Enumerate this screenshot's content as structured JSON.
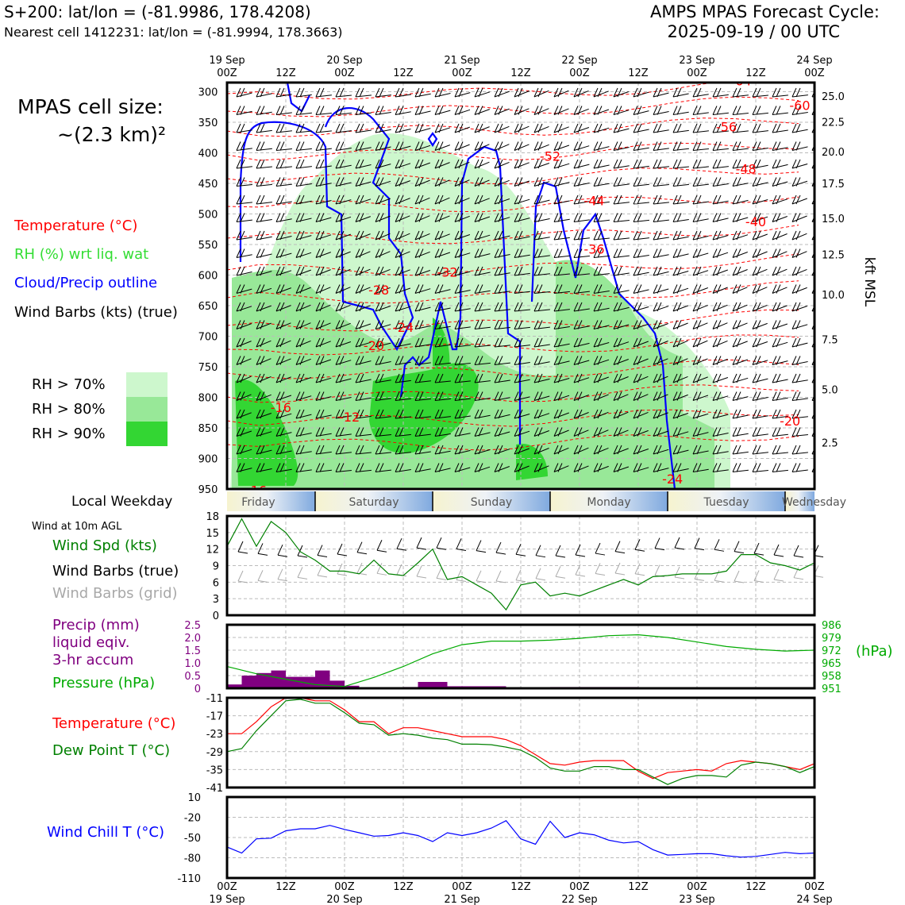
{
  "header": {
    "left_line1": "S+200: lat/lon = (-81.9986, 178.4208)",
    "left_line2": "Nearest cell 1412231: lat/lon = (-81.9994, 178.3663)",
    "right_line1": "AMPS MPAS Forecast Cycle:",
    "right_line2": "2025-09-19 / 00 UTC"
  },
  "cell_size": {
    "line1": "MPAS cell size:",
    "line2": "~(2.3 km)²"
  },
  "legend": {
    "temperature": "Temperature (°C)",
    "rh": "RH (%) wrt liq. wat",
    "cloud": "Cloud/Precip outline",
    "wind": "Wind Barbs (kts) (true)",
    "rh70": "RH > 70%",
    "rh80": "RH > 80%",
    "rh90": "RH > 90%",
    "colors": {
      "rh70": "#cdf7cd",
      "rh80": "#98e898",
      "rh90": "#33d633",
      "temp": "#ff0000",
      "cloud": "#0000ff"
    }
  },
  "top_axis": {
    "date_labels": [
      "19 Sep",
      "",
      "20 Sep",
      "",
      "21 Sep",
      "",
      "22 Sep",
      "",
      "23 Sep",
      "",
      "24 Sep"
    ],
    "hour_labels": [
      "00Z",
      "12Z",
      "00Z",
      "12Z",
      "00Z",
      "12Z",
      "00Z",
      "12Z",
      "00Z",
      "12Z",
      "00Z"
    ]
  },
  "weekday": {
    "title": "Local Weekday",
    "days": [
      "Friday",
      "Saturday",
      "Sunday",
      "Monday",
      "Tuesday",
      "Wednesday"
    ]
  },
  "panel_labels": {
    "wind10m": "Wind at 10m AGL",
    "wind_spd": "Wind Spd (kts)",
    "wind_barbs_true": "Wind Barbs (true)",
    "wind_barbs_grid": "Wind Barbs (grid)",
    "precip1": "Precip (mm)",
    "precip2": "liquid eqiv.",
    "precip3": "3-hr accum",
    "pressure": "Pressure (hPa)",
    "pressure_unit": "(hPa)",
    "temperature": "Temperature (°C)",
    "dewpoint": "Dew Point T (°C)",
    "windchill": "Wind Chill T (°C)"
  },
  "chart_data": [
    {
      "type": "time-height cross-section",
      "title": "Temperature, RH, cloud outline and wind barbs",
      "x_hours": [
        0,
        120
      ],
      "y_pressure_ticks": [
        300,
        350,
        400,
        450,
        500,
        550,
        600,
        650,
        700,
        750,
        800,
        850,
        900,
        950
      ],
      "y_right_label": "kft MSL",
      "y_right_ticks": [
        "25.0",
        "22.5",
        "20.0",
        "17.5",
        "15.0",
        "12.5",
        "10.0",
        "7.5",
        "5.0",
        "2.5"
      ],
      "y_right_tick_pressures": [
        307,
        349,
        398,
        450,
        507,
        566,
        632,
        705,
        787,
        874
      ],
      "temperature_contour_labels": [
        {
          "label": "-64",
          "hour": 105,
          "p": 282
        },
        {
          "label": "-60",
          "hour": 117,
          "p": 322
        },
        {
          "label": "-56",
          "hour": 102,
          "p": 357
        },
        {
          "label": "-52",
          "hour": 66,
          "p": 405
        },
        {
          "label": "-48",
          "hour": 106,
          "p": 426
        },
        {
          "label": "-44",
          "hour": 75,
          "p": 478
        },
        {
          "label": "-40",
          "hour": 108,
          "p": 512
        },
        {
          "label": "-36",
          "hour": 75,
          "p": 557
        },
        {
          "label": "-32",
          "hour": 45,
          "p": 595
        },
        {
          "label": "-28",
          "hour": 31,
          "p": 624
        },
        {
          "label": "-24",
          "hour": 36,
          "p": 685
        },
        {
          "label": "-20",
          "hour": 30,
          "p": 715
        },
        {
          "label": "-16",
          "hour": 11,
          "p": 816
        },
        {
          "label": "-12",
          "hour": 25,
          "p": 832
        },
        {
          "label": "-20",
          "hour": 115,
          "p": 838
        },
        {
          "label": "-16",
          "hour": 6,
          "p": 952
        },
        {
          "label": "-24",
          "hour": 91,
          "p": 933
        }
      ]
    },
    {
      "type": "line",
      "title": "Wind at 10m AGL",
      "ylabel": "Wind Spd (kts)",
      "ylim": [
        0,
        18
      ],
      "yticks": [
        0,
        3,
        6,
        9,
        12,
        15,
        18
      ],
      "x_hours": [
        0,
        3,
        6,
        9,
        12,
        15,
        18,
        21,
        24,
        27,
        30,
        33,
        36,
        39,
        42,
        45,
        48,
        51,
        54,
        57,
        60,
        63,
        66,
        69,
        72,
        75,
        78,
        81,
        84,
        87,
        90,
        93,
        96,
        99,
        102,
        105,
        108,
        111,
        114,
        117,
        120
      ],
      "series": [
        {
          "name": "Wind Spd (kts)",
          "values": [
            12.5,
            17.5,
            12.5,
            17,
            15,
            11.5,
            10,
            8,
            8,
            7.5,
            10,
            7.5,
            7.2,
            9.5,
            12,
            6.5,
            7,
            5.5,
            4,
            1,
            5.5,
            6,
            3.5,
            4,
            3.5,
            4.5,
            5.5,
            6.5,
            5.5,
            7,
            7.2,
            7.5,
            7.5,
            7.5,
            8,
            11,
            11,
            9.5,
            9,
            8.2,
            9.5
          ]
        }
      ]
    },
    {
      "type": "bar+line",
      "title": "Precipitation and pressure",
      "left_ylabel": "Precip (mm)",
      "left_ylim": [
        0,
        2.5
      ],
      "left_yticks": [
        "0",
        "0.5",
        "1.0",
        "1.5",
        "2.0",
        "2.5"
      ],
      "right_ylabel": "Pressure (hPa)",
      "right_ylim": [
        951,
        986
      ],
      "right_yticks": [
        "951",
        "958",
        "965",
        "972",
        "979",
        "986"
      ],
      "precip_bars": [
        {
          "hour": 3,
          "value": 0.15
        },
        {
          "hour": 6,
          "value": 0.5
        },
        {
          "hour": 9,
          "value": 0.6
        },
        {
          "hour": 12,
          "value": 0.7
        },
        {
          "hour": 15,
          "value": 0.45
        },
        {
          "hour": 18,
          "value": 0.45
        },
        {
          "hour": 21,
          "value": 0.7
        },
        {
          "hour": 24,
          "value": 0.3
        },
        {
          "hour": 27,
          "value": 0.1
        },
        {
          "hour": 39,
          "value": 0.05
        },
        {
          "hour": 42,
          "value": 0.25
        },
        {
          "hour": 45,
          "value": 0.25
        },
        {
          "hour": 48,
          "value": 0.08
        },
        {
          "hour": 51,
          "value": 0.08
        },
        {
          "hour": 54,
          "value": 0.08
        },
        {
          "hour": 57,
          "value": 0.08
        },
        {
          "hour": 69,
          "value": 0.05
        },
        {
          "hour": 72,
          "value": 0.05
        },
        {
          "hour": 75,
          "value": 0.05
        },
        {
          "hour": 78,
          "value": 0.05
        },
        {
          "hour": 81,
          "value": 0.05
        },
        {
          "hour": 84,
          "value": 0.05
        }
      ],
      "pressure_hours": [
        0,
        6,
        12,
        18,
        24,
        30,
        36,
        42,
        48,
        54,
        60,
        66,
        72,
        78,
        84,
        90,
        96,
        102,
        108,
        114,
        120
      ],
      "pressure_values": [
        963,
        959,
        956,
        953,
        952,
        957,
        963,
        970,
        975,
        977,
        977,
        977.5,
        978.5,
        980,
        980.5,
        979,
        976.5,
        974,
        972.5,
        971.5,
        972
      ]
    },
    {
      "type": "line",
      "title": "Temperature and dew point",
      "ylim": [
        -41,
        -11
      ],
      "yticks": [
        -41,
        -35,
        -29,
        -23,
        -17,
        -11
      ],
      "x_hours": [
        0,
        3,
        6,
        9,
        12,
        15,
        18,
        21,
        24,
        27,
        30,
        33,
        36,
        39,
        42,
        45,
        48,
        51,
        54,
        57,
        60,
        63,
        66,
        69,
        72,
        75,
        78,
        81,
        84,
        87,
        90,
        93,
        96,
        99,
        102,
        105,
        108,
        111,
        114,
        117,
        120
      ],
      "series": [
        {
          "name": "Temperature (°C)",
          "values": [
            -23,
            -23,
            -19,
            -14,
            -11,
            -11,
            -12,
            -12,
            -15,
            -19,
            -19,
            -23,
            -21,
            -21,
            -22,
            -23,
            -24,
            -24,
            -24,
            -25,
            -27,
            -30,
            -33,
            -33.5,
            -32.5,
            -32,
            -32,
            -32,
            -35.5,
            -38,
            -36,
            -35.5,
            -35,
            -35.5,
            -33,
            -32,
            -32.5,
            -33,
            -34,
            -35,
            -33
          ]
        },
        {
          "name": "Dew Point T (°C)",
          "values": [
            -29,
            -28,
            -22,
            -17,
            -12,
            -11.5,
            -12.8,
            -12.8,
            -16,
            -19.5,
            -20,
            -23.5,
            -23,
            -23.5,
            -24.5,
            -25,
            -26.5,
            -26.5,
            -26.7,
            -27.5,
            -28.5,
            -31,
            -34.5,
            -35.5,
            -35.5,
            -34,
            -34,
            -35,
            -35,
            -37.5,
            -40,
            -38,
            -37,
            -37,
            -37.5,
            -33.5,
            -32.5,
            -33,
            -34,
            -36,
            -34
          ]
        }
      ]
    },
    {
      "type": "line",
      "title": "Wind chill",
      "ylim": [
        -110,
        10
      ],
      "yticks": [
        -110,
        -80,
        -50,
        -20,
        10
      ],
      "x_hours": [
        0,
        3,
        6,
        9,
        12,
        15,
        18,
        21,
        24,
        27,
        30,
        33,
        36,
        39,
        42,
        45,
        48,
        51,
        54,
        57,
        60,
        63,
        66,
        69,
        72,
        75,
        78,
        81,
        84,
        87,
        90,
        93,
        96,
        99,
        102,
        105,
        108,
        111,
        114,
        117,
        120
      ],
      "series": [
        {
          "name": "Wind Chill T (°C)",
          "values": [
            -64,
            -73,
            -52,
            -51,
            -40,
            -37,
            -37,
            -32,
            -38,
            -43,
            -48,
            -47,
            -43,
            -47,
            -56,
            -43,
            -47,
            -43,
            -36,
            -25,
            -52,
            -60,
            -26,
            -50,
            -43,
            -46,
            -54,
            -58,
            -56,
            -68,
            -76,
            -75,
            -74,
            -74,
            -77,
            -79,
            -78,
            -75,
            -72,
            -74,
            -73
          ]
        }
      ]
    }
  ]
}
